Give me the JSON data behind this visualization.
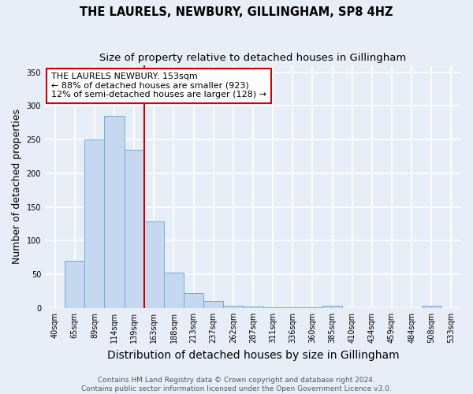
{
  "title": "THE LAURELS, NEWBURY, GILLINGHAM, SP8 4HZ",
  "subtitle": "Size of property relative to detached houses in Gillingham",
  "xlabel": "Distribution of detached houses by size in Gillingham",
  "ylabel": "Number of detached properties",
  "categories": [
    "40sqm",
    "65sqm",
    "89sqm",
    "114sqm",
    "139sqm",
    "163sqm",
    "188sqm",
    "213sqm",
    "237sqm",
    "262sqm",
    "287sqm",
    "311sqm",
    "336sqm",
    "360sqm",
    "385sqm",
    "410sqm",
    "434sqm",
    "459sqm",
    "484sqm",
    "508sqm",
    "533sqm"
  ],
  "values": [
    0,
    70,
    250,
    285,
    235,
    128,
    52,
    22,
    10,
    4,
    2,
    1,
    1,
    1,
    3,
    0,
    0,
    0,
    0,
    3,
    0
  ],
  "bar_color": "#c5d8f0",
  "bar_edge_color": "#6baed6",
  "vline_x_index": 5,
  "vline_color": "#cc0000",
  "annotation_text": "THE LAURELS NEWBURY: 153sqm\n← 88% of detached houses are smaller (923)\n12% of semi-detached houses are larger (128) →",
  "annotation_box_color": "#ffffff",
  "annotation_box_edge": "#cc0000",
  "ylim": [
    0,
    360
  ],
  "yticks": [
    0,
    50,
    100,
    150,
    200,
    250,
    300,
    350
  ],
  "footer_line1": "Contains HM Land Registry data © Crown copyright and database right 2024.",
  "footer_line2": "Contains public sector information licensed under the Open Government Licence v3.0.",
  "background_color": "#e8eef7",
  "plot_bg_color": "#e8eef7",
  "grid_color": "#ffffff",
  "title_fontsize": 10.5,
  "subtitle_fontsize": 9.5,
  "axis_label_fontsize": 9,
  "tick_fontsize": 7,
  "footer_fontsize": 6.5,
  "ann_fontsize": 8
}
